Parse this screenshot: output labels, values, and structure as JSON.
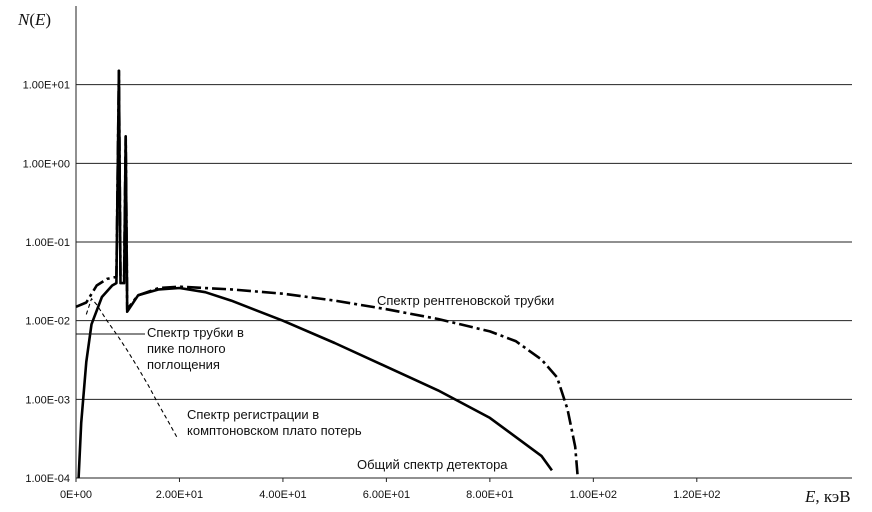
{
  "chart_data": {
    "type": "line",
    "title": "",
    "ylabel": "N(E)",
    "xlabel": "E, кэВ",
    "y_scale": "log",
    "ylim": [
      0.0001,
      100
    ],
    "xlim": [
      0,
      150
    ],
    "grid": "horizontal",
    "x_ticks": [
      0,
      20,
      40,
      60,
      80,
      100,
      120
    ],
    "x_tick_labels": [
      "0E+00",
      "2.00E+01",
      "4.00E+01",
      "6.00E+01",
      "8.00E+01",
      "1.00E+02",
      "1.20E+02"
    ],
    "y_ticks": [
      0.0001,
      0.001,
      0.01,
      0.1,
      1,
      10
    ],
    "y_tick_labels": [
      "1.00E-04",
      "1.00E-03",
      "1.00E-02",
      "1.00E-01",
      "1.00E+00",
      "1.00E+01"
    ],
    "series": [
      {
        "name": "Спектр рентгеновской трубки",
        "style": "dash-dot",
        "points": [
          [
            0,
            0.015
          ],
          [
            2,
            0.017
          ],
          [
            4,
            0.028
          ],
          [
            6,
            0.034
          ],
          [
            7.8,
            0.036
          ],
          [
            8.3,
            15
          ],
          [
            8.6,
            0.036
          ],
          [
            9.3,
            0.036
          ],
          [
            9.6,
            2.2
          ],
          [
            9.9,
            0.014
          ],
          [
            12,
            0.021
          ],
          [
            16,
            0.026
          ],
          [
            20,
            0.027
          ],
          [
            30,
            0.025
          ],
          [
            40,
            0.022
          ],
          [
            50,
            0.018
          ],
          [
            60,
            0.014
          ],
          [
            70,
            0.0105
          ],
          [
            80,
            0.0073
          ],
          [
            85,
            0.0055
          ],
          [
            90,
            0.0032
          ],
          [
            93,
            0.0019
          ],
          [
            95,
            0.00075
          ],
          [
            96.5,
            0.00025
          ],
          [
            97,
            0.0001
          ]
        ]
      },
      {
        "name": "Общий спектр детектора",
        "style": "solid",
        "points": [
          [
            0.5,
            0.0001
          ],
          [
            1,
            0.0005
          ],
          [
            2,
            0.003
          ],
          [
            3,
            0.009
          ],
          [
            5,
            0.02
          ],
          [
            7,
            0.028
          ],
          [
            7.8,
            0.03
          ],
          [
            8.3,
            15
          ],
          [
            8.6,
            0.03
          ],
          [
            9.3,
            0.03
          ],
          [
            9.6,
            2.2
          ],
          [
            9.9,
            0.013
          ],
          [
            12,
            0.021
          ],
          [
            16,
            0.025
          ],
          [
            20,
            0.026
          ],
          [
            25,
            0.023
          ],
          [
            30,
            0.018
          ],
          [
            40,
            0.01
          ],
          [
            50,
            0.0052
          ],
          [
            60,
            0.0026
          ],
          [
            70,
            0.0013
          ],
          [
            80,
            0.00058
          ],
          [
            90,
            0.00019
          ],
          [
            92,
            0.000125
          ]
        ]
      },
      {
        "name": "Спектр регистрации в комптоновском плато потерь",
        "style": "dashed",
        "points": [
          [
            2,
            0.012
          ],
          [
            3,
            0.019
          ],
          [
            4,
            0.016
          ],
          [
            6,
            0.01
          ],
          [
            8,
            0.0065
          ],
          [
            10,
            0.0041
          ],
          [
            12,
            0.0025
          ],
          [
            14,
            0.0015
          ],
          [
            16,
            0.00085
          ],
          [
            18,
            0.0005
          ],
          [
            19.5,
            0.00033
          ]
        ]
      }
    ],
    "annotations": [
      "Спектр рентгеновской трубки",
      "Спектр трубки в пике полного поглощения",
      "Спектр регистрации в комптоновском плато потерь",
      "Общий спектр детектора"
    ],
    "annotation_lines": {
      "tube_peak": [
        "Спектр трубки в",
        "пике полного",
        "поглощения"
      ],
      "compton": [
        "Спектр регистрации в",
        "комптоновском плато потерь"
      ]
    }
  }
}
